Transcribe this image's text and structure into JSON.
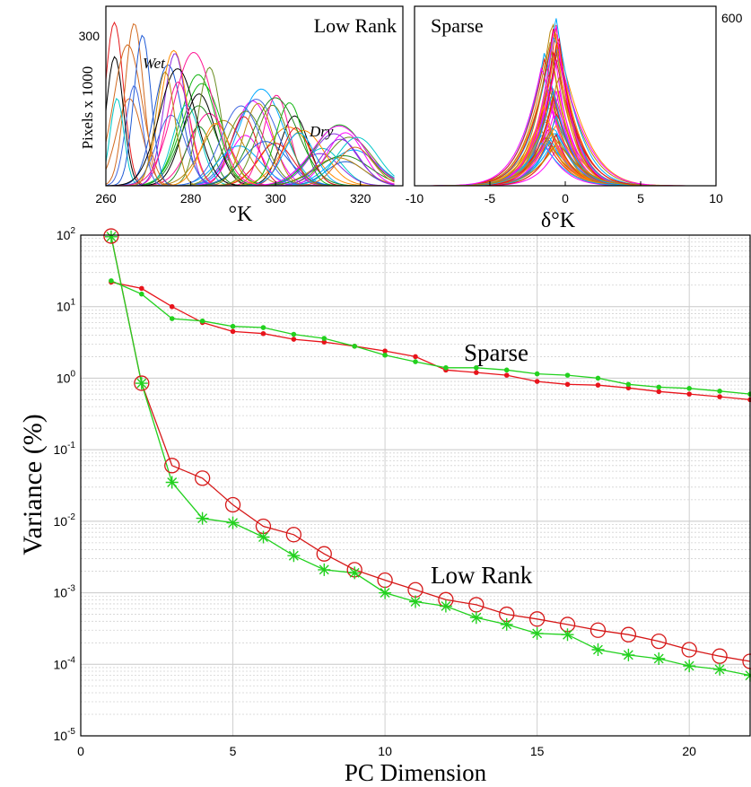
{
  "chart_data": [
    {
      "type": "line",
      "panel": "low-rank-histograms",
      "title": "Low Rank",
      "xlabel": "°K",
      "ylabel": "Pixels x 1000",
      "xlim": [
        260,
        330
      ],
      "ylim": [
        0,
        370
      ],
      "x_ticks": [
        "260",
        "280",
        "300",
        "320"
      ],
      "y_ticks": [
        "300"
      ],
      "annotations": [
        "Wet",
        "Dry"
      ],
      "series_count": 60,
      "peak_range_x": [
        262,
        322
      ],
      "peak_max_y": 355
    },
    {
      "type": "line",
      "panel": "sparse-histograms",
      "title": "Sparse",
      "xlabel": "δ°K",
      "xlim": [
        -10,
        10
      ],
      "ylim": [
        0,
        650
      ],
      "x_ticks": [
        "-10",
        "-5",
        "0",
        "5",
        "10"
      ],
      "y_ticks": [
        "600"
      ],
      "series_count": 60,
      "peak_center_x": -1,
      "peak_max_y": 630
    },
    {
      "type": "line",
      "panel": "variance",
      "xlabel": "PC Dimension",
      "ylabel": "Variance (%)",
      "xlim": [
        0,
        22
      ],
      "ylim_log10": [
        -5,
        2
      ],
      "log_scale_y": true,
      "grid": true,
      "x_ticks": [
        "0",
        "5",
        "10",
        "15",
        "20"
      ],
      "y_ticks": [
        {
          "base": "10",
          "exp": "-5"
        },
        {
          "base": "10",
          "exp": "-4"
        },
        {
          "base": "10",
          "exp": "-3"
        },
        {
          "base": "10",
          "exp": "-2"
        },
        {
          "base": "10",
          "exp": "-1"
        },
        {
          "base": "10",
          "exp": "0"
        },
        {
          "base": "10",
          "exp": "1"
        },
        {
          "base": "10",
          "exp": "2"
        }
      ],
      "annotations": [
        "Sparse",
        "Low Rank"
      ],
      "series": [
        {
          "group": "sparse",
          "color": "#e8141b",
          "marker": "dot",
          "x": [
            1,
            2,
            3,
            4,
            5,
            6,
            7,
            8,
            9,
            10,
            11,
            12,
            13,
            14,
            15,
            16,
            17,
            18,
            19,
            20,
            21,
            22
          ],
          "values": [
            22,
            18,
            10,
            6,
            4.5,
            4.2,
            3.5,
            3.2,
            2.8,
            2.4,
            2.0,
            1.3,
            1.2,
            1.1,
            0.9,
            0.82,
            0.8,
            0.73,
            0.65,
            0.6,
            0.55,
            0.5
          ]
        },
        {
          "group": "sparse",
          "color": "#22d11e",
          "marker": "dot",
          "x": [
            1,
            2,
            3,
            4,
            5,
            6,
            7,
            8,
            9,
            10,
            11,
            12,
            13,
            14,
            15,
            16,
            17,
            18,
            19,
            20,
            21,
            22
          ],
          "values": [
            23,
            15,
            6.8,
            6.3,
            5.3,
            5.1,
            4.1,
            3.6,
            2.8,
            2.1,
            1.7,
            1.4,
            1.4,
            1.3,
            1.15,
            1.1,
            1.0,
            0.82,
            0.75,
            0.72,
            0.66,
            0.6
          ]
        },
        {
          "group": "low-rank",
          "color": "#d61818",
          "marker": "circle",
          "x": [
            1,
            2,
            3,
            4,
            5,
            6,
            7,
            8,
            9,
            10,
            11,
            12,
            13,
            14,
            15,
            16,
            17,
            18,
            19,
            20,
            21,
            22
          ],
          "values": [
            97,
            0.85,
            0.06,
            0.04,
            0.017,
            0.0085,
            0.0065,
            0.0035,
            0.0021,
            0.0015,
            0.0011,
            0.0008,
            0.00068,
            0.0005,
            0.00043,
            0.00036,
            0.0003,
            0.00026,
            0.00021,
            0.00016,
            0.00013,
            0.00011
          ]
        },
        {
          "group": "low-rank",
          "color": "#22d11e",
          "marker": "star",
          "x": [
            1,
            2,
            3,
            4,
            5,
            6,
            7,
            8,
            9,
            10,
            11,
            12,
            13,
            14,
            15,
            16,
            17,
            18,
            19,
            20,
            21,
            22
          ],
          "values": [
            95,
            0.85,
            0.035,
            0.011,
            0.0095,
            0.006,
            0.0033,
            0.0021,
            0.0019,
            0.001,
            0.00075,
            0.00065,
            0.00045,
            0.00036,
            0.00027,
            0.00026,
            0.00016,
            0.000135,
            0.00012,
            9.5e-05,
            8.5e-05,
            7e-05
          ]
        }
      ]
    }
  ]
}
